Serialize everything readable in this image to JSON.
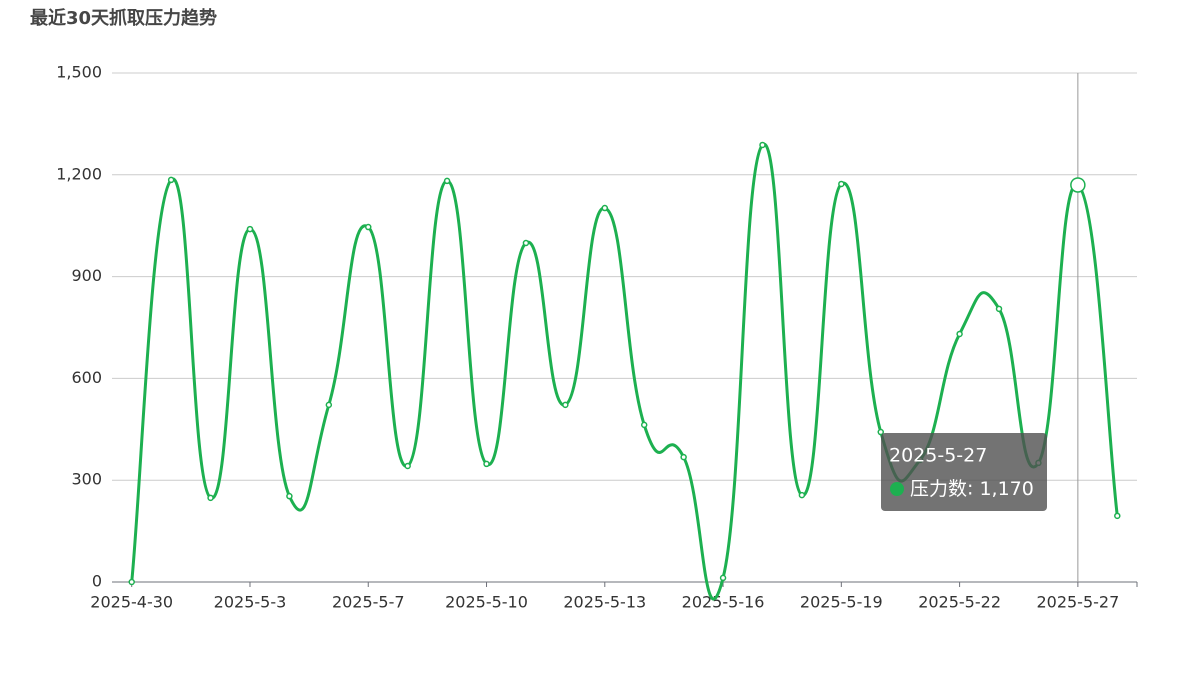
{
  "chart_data": {
    "type": "line",
    "title": "最近30天抓取压力趋势",
    "categories": [
      "2025-4-30",
      null,
      null,
      "2025-5-3",
      null,
      null,
      "2025-5-7",
      null,
      null,
      "2025-5-10",
      null,
      null,
      "2025-5-13",
      null,
      null,
      "2025-5-16",
      null,
      null,
      "2025-5-19",
      null,
      null,
      "2025-5-22",
      null,
      null,
      "2025-5-27",
      null
    ],
    "series": [
      {
        "name": "压力数",
        "color": "#1db050",
        "values": [
          0,
          1185,
          248,
          1040,
          253,
          522,
          1046,
          342,
          1182,
          348,
          999,
          522,
          1102,
          463,
          368,
          12,
          1288,
          256,
          1173,
          442,
          360,
          731,
          805,
          351,
          1170,
          195
        ]
      }
    ],
    "ylim": [
      0,
      1500
    ],
    "yticks": [
      0,
      300,
      600,
      900,
      {
        "value": 1200,
        "label": "1,200"
      },
      {
        "value": 1500,
        "label": "1,500"
      }
    ],
    "grid": true,
    "tooltip": {
      "index": 24,
      "value_label": "1,170"
    }
  }
}
